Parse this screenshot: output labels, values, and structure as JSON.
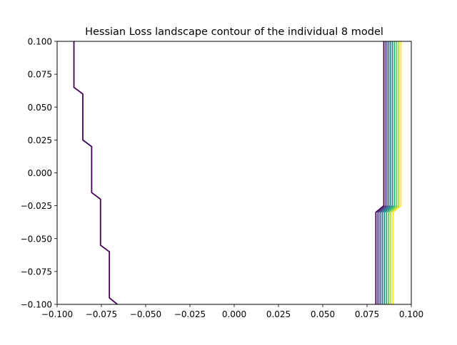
{
  "chart_data": {
    "type": "line",
    "title": "Hessian Loss landscape contour of the individual 8 model",
    "xlabel": "",
    "ylabel": "",
    "xlim": [
      -0.1,
      0.1
    ],
    "ylim": [
      -0.1,
      0.1
    ],
    "grid": false,
    "x_ticks": [
      -0.1,
      -0.075,
      -0.05,
      -0.025,
      0.0,
      0.025,
      0.05,
      0.075,
      0.1
    ],
    "x_tick_labels": [
      "−0.100",
      "−0.075",
      "−0.050",
      "−0.025",
      "0.000",
      "0.025",
      "0.050",
      "0.075",
      "0.100"
    ],
    "y_ticks": [
      0.1,
      0.075,
      0.05,
      0.025,
      0.0,
      -0.025,
      -0.05,
      -0.075,
      -0.1
    ],
    "y_tick_labels": [
      "0.100",
      "0.075",
      "0.050",
      "0.025",
      "0.000",
      "−0.025",
      "−0.050",
      "−0.075",
      "−0.100"
    ],
    "series": [
      {
        "color": "#440154",
        "points": [
          [
            -0.0905,
            0.1
          ],
          [
            -0.0905,
            0.065
          ],
          [
            -0.0855,
            0.06
          ],
          [
            -0.0855,
            0.025
          ],
          [
            -0.0805,
            0.02
          ],
          [
            -0.0805,
            -0.015
          ],
          [
            -0.0755,
            -0.02
          ],
          [
            -0.0755,
            -0.055
          ],
          [
            -0.0705,
            -0.06
          ],
          [
            -0.0705,
            -0.095
          ],
          [
            -0.066,
            -0.1
          ]
        ]
      },
      {
        "color": "#440154",
        "points": [
          [
            0.0845,
            0.1
          ],
          [
            0.0845,
            -0.025
          ],
          [
            0.08,
            -0.03
          ],
          [
            0.08,
            -0.1
          ]
        ]
      },
      {
        "color": "#472d7b",
        "points": [
          [
            0.0857,
            0.1
          ],
          [
            0.0857,
            -0.025
          ],
          [
            0.0812,
            -0.03
          ],
          [
            0.0812,
            -0.1
          ]
        ]
      },
      {
        "color": "#3b528b",
        "points": [
          [
            0.0869,
            0.1
          ],
          [
            0.0869,
            -0.025
          ],
          [
            0.0824,
            -0.03
          ],
          [
            0.0824,
            -0.1
          ]
        ]
      },
      {
        "color": "#2c728e",
        "points": [
          [
            0.0881,
            0.1
          ],
          [
            0.0881,
            -0.025
          ],
          [
            0.0836,
            -0.03
          ],
          [
            0.0836,
            -0.1
          ]
        ]
      },
      {
        "color": "#21918c",
        "points": [
          [
            0.0893,
            0.1
          ],
          [
            0.0893,
            -0.025
          ],
          [
            0.0848,
            -0.03
          ],
          [
            0.0848,
            -0.1
          ]
        ]
      },
      {
        "color": "#28ae80",
        "points": [
          [
            0.0905,
            0.1
          ],
          [
            0.0905,
            -0.025
          ],
          [
            0.086,
            -0.03
          ],
          [
            0.086,
            -0.1
          ]
        ]
      },
      {
        "color": "#5ec962",
        "points": [
          [
            0.0917,
            0.1
          ],
          [
            0.0917,
            -0.025
          ],
          [
            0.0872,
            -0.03
          ],
          [
            0.0872,
            -0.1
          ]
        ]
      },
      {
        "color": "#addc30",
        "points": [
          [
            0.0929,
            0.1
          ],
          [
            0.0929,
            -0.025
          ],
          [
            0.0884,
            -0.03
          ],
          [
            0.0884,
            -0.1
          ]
        ]
      },
      {
        "color": "#fde725",
        "points": [
          [
            0.0941,
            0.1
          ],
          [
            0.0941,
            -0.025
          ],
          [
            0.0896,
            -0.03
          ],
          [
            0.0896,
            -0.1
          ]
        ]
      }
    ]
  }
}
